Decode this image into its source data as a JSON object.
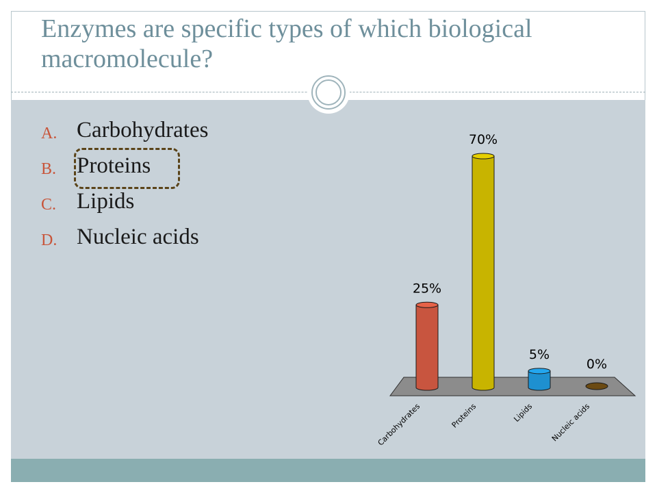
{
  "slide": {
    "title": "Enzymes are specific types of which biological macromolecule?"
  },
  "options": [
    {
      "letter": "A.",
      "text": "Carbohydrates"
    },
    {
      "letter": "B.",
      "text": "Proteins"
    },
    {
      "letter": "C.",
      "text": "Lipids"
    },
    {
      "letter": "D.",
      "text": "Nucleic acids"
    }
  ],
  "correct_answer": "B",
  "colors": {
    "title": "#6e8f9b",
    "option_letter": "#c8553a",
    "panel": "#c8d2d9",
    "footer": "#8aaeb1",
    "answer_box": "#5a4318"
  },
  "chart_data": {
    "type": "bar",
    "style": "3d-cylinder",
    "categories": [
      "Carbohydrates",
      "Proteins",
      "Lipids",
      "Nucleic acids"
    ],
    "values": [
      25,
      70,
      5,
      0
    ],
    "value_labels": [
      "25%",
      "70%",
      "5%",
      "0%"
    ],
    "colors": [
      "#c8553f",
      "#c8b400",
      "#1e90d0",
      "#6b4a12"
    ],
    "ylim": [
      0,
      70
    ],
    "grid": false,
    "legend": "none",
    "title": "",
    "xlabel": "",
    "ylabel": ""
  }
}
